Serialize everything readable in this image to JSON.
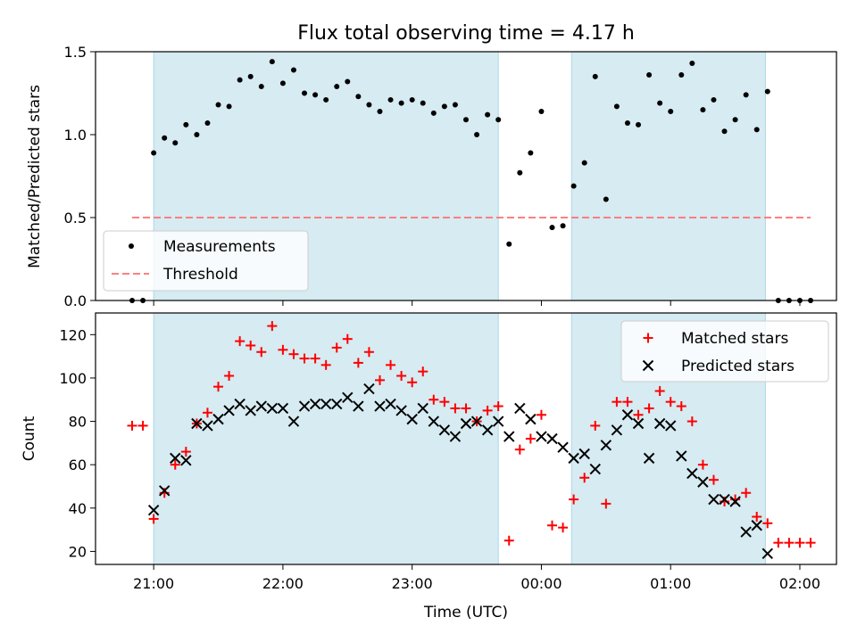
{
  "title": "Flux total observing time = 4.17 h",
  "colors": {
    "shade": "#add8e6",
    "measurement": "#000000",
    "threshold": "#ff7f7f",
    "matched": "#ff0000",
    "predicted": "#000000"
  },
  "chart_data": [
    {
      "type": "scatter",
      "ylabel": "Matched/Predicted stars",
      "xlim": [
        "20:33",
        "02:17"
      ],
      "ylim": [
        0,
        1.5
      ],
      "yticks": [
        0.0,
        0.5,
        1.0,
        1.5
      ],
      "ytick_labels": [
        "0.0",
        "0.5",
        "1.0",
        "1.5"
      ],
      "grid": false,
      "legend": "lower-left",
      "legend_labels": [
        "Measurements",
        "Threshold"
      ],
      "shaded_intervals": [
        [
          "21:00",
          "23:40"
        ],
        [
          "00:14",
          "01:44"
        ]
      ],
      "threshold": {
        "value": 0.5,
        "x_range": [
          "20:50",
          "02:05"
        ]
      },
      "series": [
        {
          "name": "Measurements",
          "x": [
            "20:50",
            "20:55",
            "21:00",
            "21:05",
            "21:10",
            "21:15",
            "21:20",
            "21:25",
            "21:30",
            "21:35",
            "21:40",
            "21:45",
            "21:50",
            "21:55",
            "22:00",
            "22:05",
            "22:10",
            "22:15",
            "22:20",
            "22:25",
            "22:30",
            "22:35",
            "22:40",
            "22:45",
            "22:50",
            "22:55",
            "23:00",
            "23:05",
            "23:10",
            "23:15",
            "23:20",
            "23:25",
            "23:30",
            "23:35",
            "23:40",
            "23:45",
            "23:50",
            "23:55",
            "00:00",
            "00:05",
            "00:10",
            "00:15",
            "00:20",
            "00:25",
            "00:30",
            "00:35",
            "00:40",
            "00:45",
            "00:50",
            "00:55",
            "01:00",
            "01:05",
            "01:10",
            "01:15",
            "01:20",
            "01:25",
            "01:30",
            "01:35",
            "01:40",
            "01:45",
            "01:50",
            "01:55",
            "02:00",
            "02:05"
          ],
          "y": [
            0.0,
            0.0,
            0.89,
            0.98,
            0.95,
            1.06,
            1.0,
            1.07,
            1.18,
            1.17,
            1.33,
            1.35,
            1.29,
            1.44,
            1.31,
            1.39,
            1.25,
            1.24,
            1.21,
            1.29,
            1.32,
            1.23,
            1.18,
            1.14,
            1.21,
            1.19,
            1.21,
            1.19,
            1.13,
            1.17,
            1.18,
            1.09,
            1.0,
            1.12,
            1.09,
            0.34,
            0.77,
            0.89,
            1.14,
            0.44,
            0.45,
            0.69,
            0.83,
            1.35,
            0.61,
            1.17,
            1.07,
            1.06,
            1.36,
            1.19,
            1.14,
            1.36,
            1.43,
            1.15,
            1.21,
            1.02,
            1.09,
            1.24,
            1.03,
            1.26,
            0.0,
            0.0,
            0.0,
            0.0
          ]
        }
      ]
    },
    {
      "type": "scatter",
      "xlabel": "Time (UTC)",
      "ylabel": "Count",
      "xlim": [
        "20:33",
        "02:17"
      ],
      "ylim": [
        14,
        130
      ],
      "yticks": [
        20,
        40,
        60,
        80,
        100,
        120
      ],
      "xticks": [
        "21:00",
        "22:00",
        "23:00",
        "00:00",
        "01:00",
        "02:00"
      ],
      "grid": false,
      "legend": "top-right",
      "legend_labels": [
        "Matched stars",
        "Predicted stars"
      ],
      "shaded_intervals": [
        [
          "21:00",
          "23:40"
        ],
        [
          "00:14",
          "01:44"
        ]
      ],
      "series": [
        {
          "name": "Matched stars",
          "x": [
            "20:50",
            "20:55",
            "21:00",
            "21:05",
            "21:10",
            "21:15",
            "21:20",
            "21:25",
            "21:30",
            "21:35",
            "21:40",
            "21:45",
            "21:50",
            "21:55",
            "22:00",
            "22:05",
            "22:10",
            "22:15",
            "22:20",
            "22:25",
            "22:30",
            "22:35",
            "22:40",
            "22:45",
            "22:50",
            "22:55",
            "23:00",
            "23:05",
            "23:10",
            "23:15",
            "23:20",
            "23:25",
            "23:30",
            "23:35",
            "23:40",
            "23:45",
            "23:50",
            "23:55",
            "00:00",
            "00:05",
            "00:10",
            "00:15",
            "00:20",
            "00:25",
            "00:30",
            "00:35",
            "00:40",
            "00:45",
            "00:50",
            "00:55",
            "01:00",
            "01:05",
            "01:10",
            "01:15",
            "01:20",
            "01:25",
            "01:30",
            "01:35",
            "01:40",
            "01:45",
            "01:50",
            "01:55",
            "02:00",
            "02:05"
          ],
          "y": [
            78,
            78,
            35,
            47,
            60,
            66,
            79,
            84,
            96,
            101,
            117,
            115,
            112,
            124,
            113,
            111,
            109,
            109,
            106,
            114,
            118,
            107,
            112,
            99,
            106,
            101,
            98,
            103,
            90,
            89,
            86,
            86,
            80,
            85,
            87,
            25,
            67,
            72,
            83,
            32,
            31,
            44,
            54,
            78,
            42,
            89,
            89,
            83,
            86,
            94,
            89,
            87,
            80,
            60,
            53,
            43,
            44,
            47,
            36,
            33,
            24,
            24,
            24,
            24
          ]
        },
        {
          "name": "Predicted stars",
          "x": [
            "21:00",
            "21:05",
            "21:10",
            "21:15",
            "21:20",
            "21:25",
            "21:30",
            "21:35",
            "21:40",
            "21:45",
            "21:50",
            "21:55",
            "22:00",
            "22:05",
            "22:10",
            "22:15",
            "22:20",
            "22:25",
            "22:30",
            "22:35",
            "22:40",
            "22:45",
            "22:50",
            "22:55",
            "23:00",
            "23:05",
            "23:10",
            "23:15",
            "23:20",
            "23:25",
            "23:30",
            "23:35",
            "23:40",
            "23:45",
            "23:50",
            "23:55",
            "00:00",
            "00:05",
            "00:10",
            "00:15",
            "00:20",
            "00:25",
            "00:30",
            "00:35",
            "00:40",
            "00:45",
            "00:50",
            "00:55",
            "01:00",
            "01:05",
            "01:10",
            "01:15",
            "01:20",
            "01:25",
            "01:30",
            "01:35",
            "01:40",
            "01:45"
          ],
          "y": [
            39,
            48,
            63,
            62,
            79,
            78,
            81,
            85,
            88,
            85,
            87,
            86,
            86,
            80,
            87,
            88,
            88,
            88,
            91,
            87,
            95,
            87,
            88,
            85,
            81,
            86,
            80,
            76,
            73,
            79,
            80,
            76,
            80,
            73,
            86,
            81,
            73,
            72,
            68,
            63,
            65,
            58,
            69,
            76,
            83,
            79,
            63,
            79,
            78,
            64,
            56,
            52,
            44,
            44,
            43,
            29,
            32,
            19
          ]
        }
      ]
    }
  ]
}
